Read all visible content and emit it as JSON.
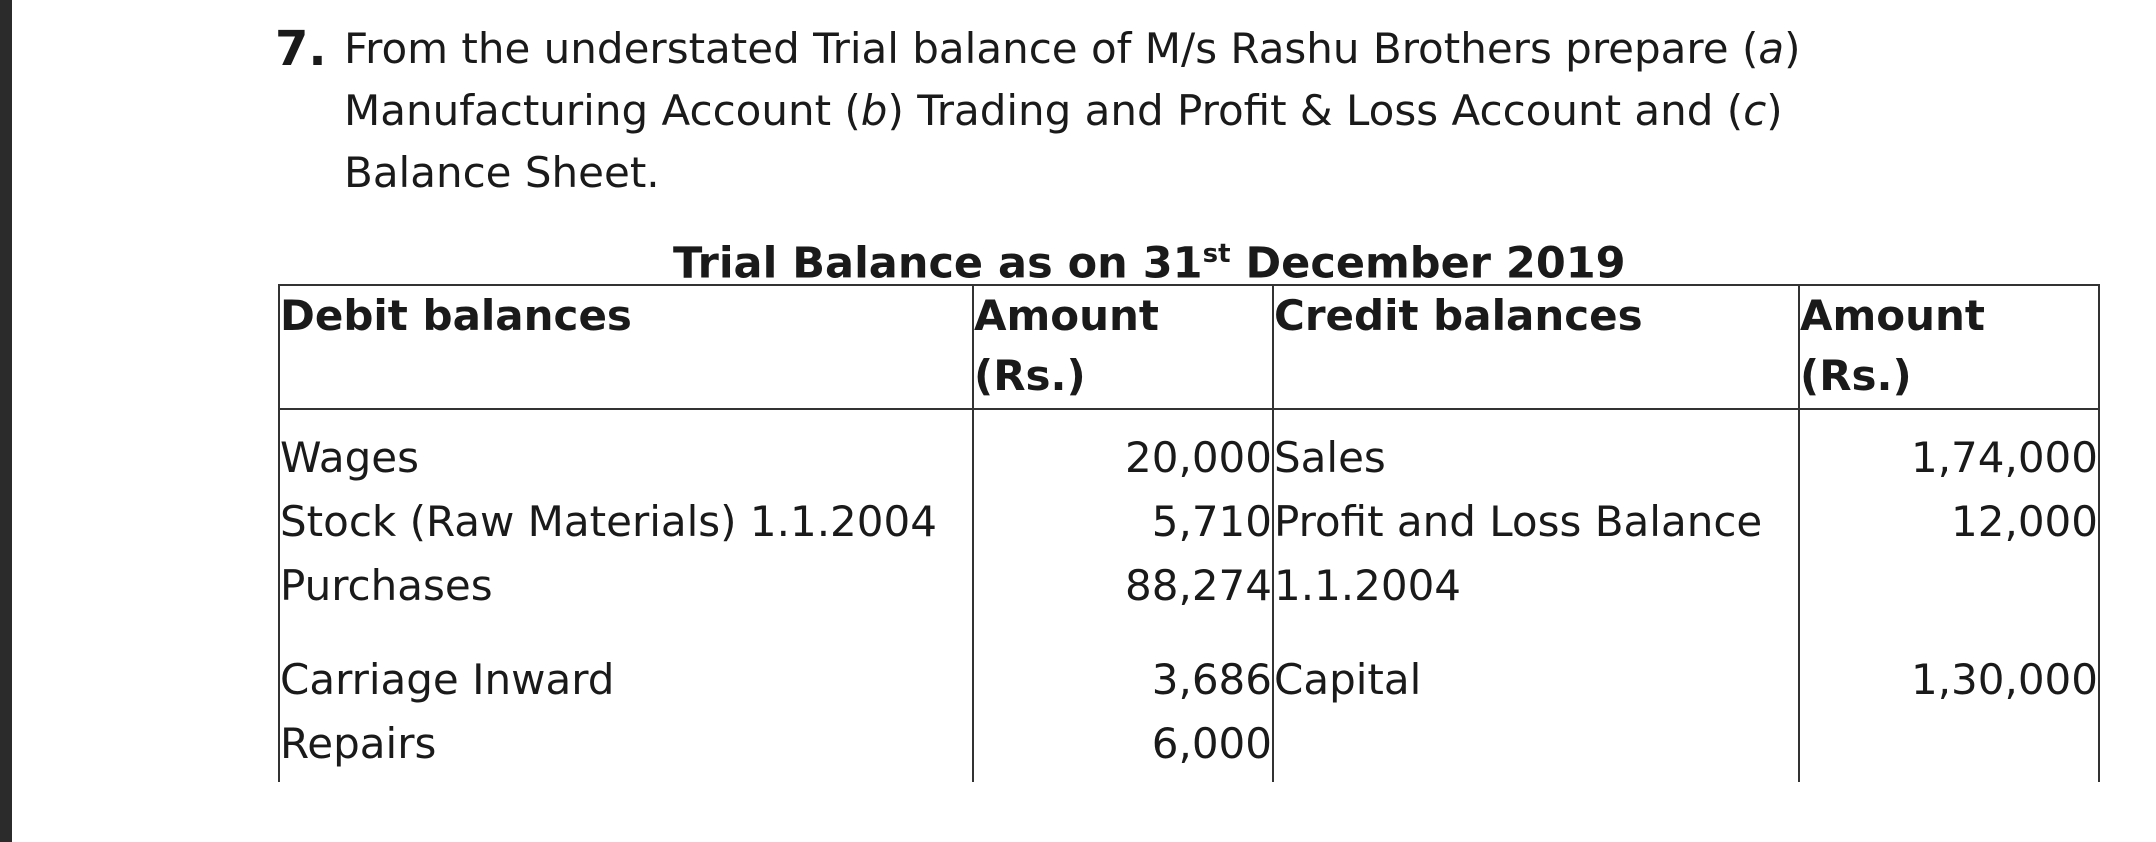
{
  "question": {
    "number": "7.",
    "text_before_a": "From the understated Trial balance of M/s Rashu Brothers prepare (",
    "a": "a",
    "text_after_a": ") Manufacturing Account (",
    "b": "b",
    "text_after_b": ") Trading and Profit & Loss Account and (",
    "c": "c",
    "text_after_c": ") Balance Sheet."
  },
  "trial_balance": {
    "title_pre": "Trial Balance as on 31",
    "title_sup": "st",
    "title_post": " December 2019",
    "headers": {
      "debit": "Debit balances",
      "amount": "Amount (Rs.)",
      "credit": "Credit balances",
      "amount2": "Amount (Rs.)"
    },
    "rows": [
      {
        "debit": "Wages",
        "debit_amount": "20,000",
        "credit": "Sales",
        "credit_amount": "1,74,000"
      },
      {
        "debit": "Stock (Raw Materials) 1.1.2004",
        "debit_amount": "5,710",
        "credit": "Profit and Loss Balance",
        "credit_amount": "12,000"
      },
      {
        "debit": "Purchases",
        "debit_amount": "88,274",
        "credit": "1.1.2004",
        "credit_amount": ""
      },
      {
        "debit": "Carriage Inward",
        "debit_amount": "3,686",
        "credit": "Capital",
        "credit_amount": "1,30,000"
      },
      {
        "debit": "Repairs",
        "debit_amount": "6,000",
        "credit": "",
        "credit_amount": ""
      }
    ]
  }
}
